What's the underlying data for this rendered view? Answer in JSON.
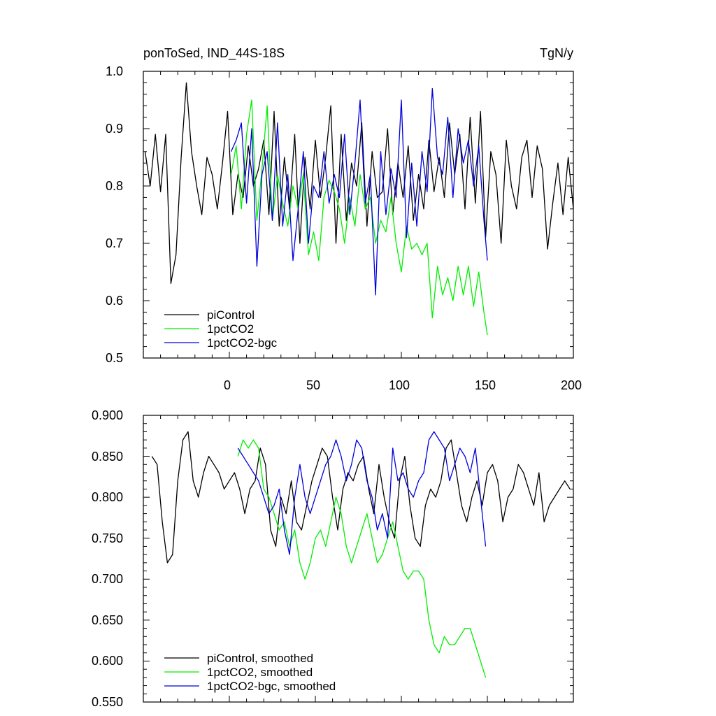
{
  "chart_data": [
    {
      "type": "line",
      "title_left": "ponToSed, IND_44S-18S",
      "title_right": "TgN/y",
      "xlim": [
        -50,
        200
      ],
      "ylim": [
        0.5,
        1.0
      ],
      "xticks": [
        0,
        50,
        100,
        150,
        200
      ],
      "xtick_labels": [
        "0",
        "50",
        "100",
        "150",
        "200"
      ],
      "yticks": [
        0.5,
        0.6,
        0.7,
        0.8,
        0.9,
        1.0
      ],
      "ytick_labels": [
        "0.5",
        "0.6",
        "0.7",
        "0.8",
        "0.9",
        "1.0"
      ],
      "legend_position": "bottom-left",
      "series": [
        {
          "name": "piControl",
          "color": "#000000",
          "x": [
            -49,
            -46,
            -43,
            -40,
            -37,
            -34,
            -31,
            -28,
            -25,
            -22,
            -19,
            -16,
            -13,
            -10,
            -7,
            -4,
            -1,
            2,
            5,
            8,
            11,
            14,
            17,
            20,
            23,
            26,
            29,
            32,
            35,
            38,
            41,
            44,
            47,
            50,
            53,
            56,
            59,
            62,
            65,
            68,
            71,
            74,
            77,
            80,
            83,
            86,
            89,
            92,
            95,
            98,
            101,
            104,
            107,
            110,
            113,
            116,
            119,
            122,
            125,
            128,
            131,
            134,
            137,
            140,
            143,
            146,
            149,
            152,
            155,
            158,
            161,
            164,
            167,
            170,
            173,
            176,
            179,
            182,
            185,
            188,
            191,
            194,
            197,
            200
          ],
          "values": [
            0.86,
            0.8,
            0.89,
            0.79,
            0.89,
            0.63,
            0.68,
            0.85,
            0.98,
            0.86,
            0.8,
            0.75,
            0.85,
            0.82,
            0.76,
            0.84,
            0.93,
            0.75,
            0.82,
            0.78,
            0.87,
            0.8,
            0.83,
            0.88,
            0.75,
            0.93,
            0.73,
            0.85,
            0.76,
            0.89,
            0.7,
            0.85,
            0.76,
            0.88,
            0.78,
            0.85,
            0.94,
            0.7,
            0.89,
            0.74,
            0.84,
            0.8,
            0.91,
            0.73,
            0.86,
            0.78,
            0.79,
            0.9,
            0.75,
            0.84,
            0.78,
            0.87,
            0.74,
            0.82,
            0.76,
            0.88,
            0.79,
            0.85,
            0.78,
            0.91,
            0.82,
            0.89,
            0.76,
            0.92,
            0.77,
            0.93,
            0.71,
            0.86,
            0.82,
            0.7,
            0.88,
            0.8,
            0.76,
            0.85,
            0.88,
            0.78,
            0.87,
            0.83,
            0.69,
            0.77,
            0.84,
            0.75,
            0.85,
            0.76
          ]
        },
        {
          "name": "1pctCO2",
          "color": "#00ee00",
          "x": [
            1,
            4,
            7,
            10,
            13,
            16,
            19,
            22,
            25,
            28,
            31,
            34,
            37,
            40,
            43,
            46,
            49,
            52,
            55,
            58,
            61,
            64,
            67,
            70,
            73,
            76,
            79,
            82,
            85,
            88,
            91,
            94,
            97,
            100,
            103,
            106,
            109,
            112,
            115,
            118,
            121,
            124,
            127,
            130,
            133,
            136,
            139,
            142,
            145,
            148,
            150
          ],
          "values": [
            0.82,
            0.87,
            0.76,
            0.89,
            0.95,
            0.74,
            0.83,
            0.94,
            0.74,
            0.82,
            0.77,
            0.73,
            0.8,
            0.76,
            0.82,
            0.68,
            0.72,
            0.67,
            0.78,
            0.81,
            0.79,
            0.76,
            0.7,
            0.78,
            0.73,
            0.82,
            0.76,
            0.78,
            0.7,
            0.74,
            0.72,
            0.78,
            0.7,
            0.65,
            0.73,
            0.69,
            0.7,
            0.68,
            0.7,
            0.57,
            0.66,
            0.61,
            0.64,
            0.6,
            0.66,
            0.61,
            0.66,
            0.59,
            0.65,
            0.58,
            0.54
          ]
        },
        {
          "name": "1pctCO2-bgc",
          "color": "#0000dd",
          "x": [
            1,
            4,
            7,
            10,
            13,
            16,
            19,
            22,
            25,
            28,
            31,
            34,
            37,
            40,
            43,
            46,
            49,
            52,
            55,
            58,
            61,
            64,
            67,
            70,
            73,
            76,
            79,
            82,
            85,
            88,
            91,
            94,
            97,
            100,
            103,
            106,
            109,
            112,
            115,
            118,
            121,
            124,
            127,
            130,
            133,
            136,
            139,
            142,
            145,
            148,
            150
          ],
          "values": [
            0.86,
            0.88,
            0.91,
            0.77,
            0.9,
            0.66,
            0.82,
            0.86,
            0.74,
            0.91,
            0.73,
            0.82,
            0.67,
            0.76,
            0.86,
            0.7,
            0.8,
            0.78,
            0.86,
            0.77,
            0.82,
            0.78,
            0.89,
            0.75,
            0.84,
            0.95,
            0.77,
            0.82,
            0.61,
            0.86,
            0.75,
            0.83,
            0.78,
            0.95,
            0.71,
            0.84,
            0.73,
            0.86,
            0.79,
            0.97,
            0.85,
            0.82,
            0.92,
            0.78,
            0.9,
            0.84,
            0.88,
            0.8,
            0.87,
            0.74,
            0.67
          ]
        }
      ]
    },
    {
      "type": "line",
      "xlim": [
        -50,
        200
      ],
      "ylim": [
        0.55,
        0.9
      ],
      "xticks": [
        0,
        50,
        100,
        150,
        200
      ],
      "yticks": [
        0.55,
        0.6,
        0.65,
        0.7,
        0.75,
        0.8,
        0.85,
        0.9
      ],
      "ytick_labels": [
        "0.550",
        "0.600",
        "0.650",
        "0.700",
        "0.750",
        "0.800",
        "0.850",
        "0.900"
      ],
      "legend_position": "bottom-left",
      "series": [
        {
          "name": "piControl, smoothed",
          "color": "#000000",
          "x": [
            -45,
            -42,
            -39,
            -36,
            -33,
            -30,
            -27,
            -24,
            -21,
            -18,
            -15,
            -12,
            -9,
            -6,
            -3,
            0,
            3,
            6,
            9,
            12,
            15,
            18,
            21,
            24,
            27,
            30,
            33,
            36,
            39,
            42,
            45,
            48,
            51,
            54,
            57,
            60,
            63,
            66,
            69,
            72,
            75,
            78,
            81,
            84,
            87,
            90,
            93,
            96,
            99,
            102,
            105,
            108,
            111,
            114,
            117,
            120,
            123,
            126,
            129,
            132,
            135,
            138,
            141,
            144,
            147,
            150,
            153,
            156,
            159,
            162,
            165,
            168,
            171,
            174,
            177,
            180,
            183,
            186,
            189,
            192,
            195,
            198
          ],
          "values": [
            0.85,
            0.84,
            0.77,
            0.72,
            0.73,
            0.82,
            0.87,
            0.88,
            0.82,
            0.8,
            0.83,
            0.85,
            0.84,
            0.83,
            0.81,
            0.82,
            0.83,
            0.81,
            0.78,
            0.81,
            0.82,
            0.86,
            0.84,
            0.76,
            0.74,
            0.8,
            0.78,
            0.82,
            0.77,
            0.76,
            0.79,
            0.82,
            0.84,
            0.86,
            0.85,
            0.8,
            0.76,
            0.81,
            0.83,
            0.82,
            0.84,
            0.85,
            0.81,
            0.78,
            0.84,
            0.8,
            0.77,
            0.75,
            0.82,
            0.85,
            0.79,
            0.75,
            0.74,
            0.79,
            0.81,
            0.8,
            0.82,
            0.86,
            0.87,
            0.83,
            0.79,
            0.77,
            0.8,
            0.82,
            0.79,
            0.83,
            0.84,
            0.82,
            0.77,
            0.8,
            0.81,
            0.84,
            0.83,
            0.81,
            0.79,
            0.83,
            0.77,
            0.79,
            0.8,
            0.81,
            0.82,
            0.81
          ]
        },
        {
          "name": "1pctCO2, smoothed",
          "color": "#00ee00",
          "x": [
            5,
            8,
            11,
            14,
            17,
            20,
            23,
            26,
            29,
            32,
            35,
            38,
            41,
            44,
            47,
            50,
            53,
            56,
            59,
            62,
            65,
            68,
            71,
            74,
            77,
            80,
            83,
            86,
            89,
            92,
            95,
            98,
            101,
            104,
            107,
            110,
            113,
            116,
            119,
            122,
            125,
            128,
            131,
            134,
            137,
            140,
            143,
            146,
            149
          ],
          "values": [
            0.85,
            0.87,
            0.86,
            0.87,
            0.86,
            0.81,
            0.8,
            0.78,
            0.76,
            0.77,
            0.74,
            0.76,
            0.72,
            0.7,
            0.72,
            0.75,
            0.76,
            0.74,
            0.77,
            0.8,
            0.78,
            0.74,
            0.72,
            0.74,
            0.76,
            0.78,
            0.75,
            0.72,
            0.73,
            0.75,
            0.77,
            0.74,
            0.71,
            0.7,
            0.71,
            0.71,
            0.7,
            0.65,
            0.62,
            0.61,
            0.63,
            0.62,
            0.62,
            0.63,
            0.64,
            0.64,
            0.62,
            0.6,
            0.58
          ]
        },
        {
          "name": "1pctCO2-bgc, smoothed",
          "color": "#0000dd",
          "x": [
            5,
            8,
            11,
            14,
            17,
            20,
            23,
            26,
            29,
            32,
            35,
            38,
            41,
            44,
            47,
            50,
            53,
            56,
            59,
            62,
            65,
            68,
            71,
            74,
            77,
            80,
            83,
            86,
            89,
            92,
            95,
            98,
            101,
            104,
            107,
            110,
            113,
            116,
            119,
            122,
            125,
            128,
            131,
            134,
            137,
            140,
            143,
            146,
            149
          ],
          "values": [
            0.86,
            0.85,
            0.84,
            0.83,
            0.82,
            0.8,
            0.78,
            0.79,
            0.81,
            0.76,
            0.73,
            0.8,
            0.84,
            0.8,
            0.78,
            0.8,
            0.82,
            0.84,
            0.85,
            0.87,
            0.85,
            0.82,
            0.84,
            0.87,
            0.86,
            0.82,
            0.8,
            0.76,
            0.78,
            0.75,
            0.86,
            0.82,
            0.83,
            0.81,
            0.8,
            0.82,
            0.83,
            0.87,
            0.88,
            0.87,
            0.86,
            0.82,
            0.84,
            0.86,
            0.85,
            0.83,
            0.86,
            0.8,
            0.74
          ]
        }
      ]
    }
  ]
}
